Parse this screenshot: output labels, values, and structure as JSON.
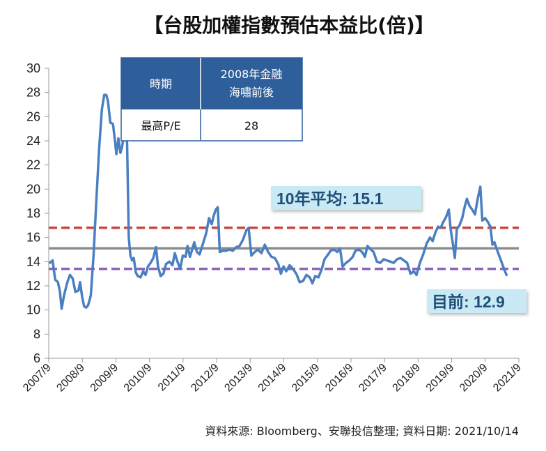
{
  "chart_data": {
    "type": "line",
    "title": "【台股加權指數預估本益比(倍)】",
    "ylim": [
      6,
      30
    ],
    "yticks": [
      6,
      8,
      10,
      12,
      14,
      16,
      18,
      20,
      22,
      24,
      26,
      28,
      30
    ],
    "xticks": [
      "2007/9",
      "2008/9",
      "2009/9",
      "2010/9",
      "2011/9",
      "2012/9",
      "2013/9",
      "2014/9",
      "2015/9",
      "2016/9",
      "2017/9",
      "2018/9",
      "2019/9",
      "2020/9",
      "2021/9"
    ],
    "grid": false,
    "series": [
      {
        "color": "#4a7fc1",
        "points": [
          [
            2007.7,
            13.9
          ],
          [
            2007.78,
            14.1
          ],
          [
            2007.86,
            12.5
          ],
          [
            2007.94,
            12.3
          ],
          [
            2008.0,
            11.5
          ],
          [
            2008.05,
            10.1
          ],
          [
            2008.12,
            11.2
          ],
          [
            2008.22,
            12.3
          ],
          [
            2008.3,
            12.9
          ],
          [
            2008.38,
            12.6
          ],
          [
            2008.46,
            11.5
          ],
          [
            2008.55,
            11.6
          ],
          [
            2008.6,
            12.3
          ],
          [
            2008.66,
            11.1
          ],
          [
            2008.72,
            10.3
          ],
          [
            2008.78,
            10.2
          ],
          [
            2008.84,
            10.4
          ],
          [
            2008.92,
            11.2
          ],
          [
            2009.0,
            14.5
          ],
          [
            2009.08,
            18.8
          ],
          [
            2009.17,
            23.5
          ],
          [
            2009.25,
            26.6
          ],
          [
            2009.32,
            27.8
          ],
          [
            2009.38,
            27.8
          ],
          [
            2009.43,
            27.3
          ],
          [
            2009.5,
            25.5
          ],
          [
            2009.58,
            25.4
          ],
          [
            2009.64,
            24.0
          ],
          [
            2009.68,
            22.9
          ],
          [
            2009.74,
            24.2
          ],
          [
            2009.8,
            23.0
          ],
          [
            2009.85,
            23.5
          ],
          [
            2009.9,
            24.4
          ],
          [
            2009.95,
            24.7
          ],
          [
            2010.0,
            23.8
          ],
          [
            2010.05,
            16.0
          ],
          [
            2010.1,
            14.5
          ],
          [
            2010.15,
            14.1
          ],
          [
            2010.2,
            14.3
          ],
          [
            2010.26,
            13.1
          ],
          [
            2010.32,
            12.8
          ],
          [
            2010.4,
            12.7
          ],
          [
            2010.48,
            13.2
          ],
          [
            2010.55,
            12.9
          ],
          [
            2010.62,
            13.6
          ],
          [
            2010.7,
            13.9
          ],
          [
            2010.78,
            14.3
          ],
          [
            2010.86,
            15.2
          ],
          [
            2010.92,
            13.6
          ],
          [
            2011.0,
            12.8
          ],
          [
            2011.08,
            13.0
          ],
          [
            2011.16,
            13.8
          ],
          [
            2011.26,
            14.0
          ],
          [
            2011.35,
            13.7
          ],
          [
            2011.42,
            14.7
          ],
          [
            2011.5,
            14.0
          ],
          [
            2011.58,
            13.4
          ],
          [
            2011.66,
            14.5
          ],
          [
            2011.74,
            14.4
          ],
          [
            2011.8,
            15.3
          ],
          [
            2011.87,
            14.4
          ],
          [
            2011.94,
            15.0
          ],
          [
            2012.0,
            15.6
          ],
          [
            2012.08,
            14.8
          ],
          [
            2012.16,
            14.6
          ],
          [
            2012.26,
            15.5
          ],
          [
            2012.36,
            16.4
          ],
          [
            2012.44,
            17.6
          ],
          [
            2012.52,
            17.1
          ],
          [
            2012.58,
            17.8
          ],
          [
            2012.64,
            18.3
          ],
          [
            2012.7,
            18.5
          ],
          [
            2012.76,
            14.8
          ],
          [
            2012.85,
            14.9
          ],
          [
            2012.95,
            14.9
          ],
          [
            2013.05,
            15.0
          ],
          [
            2013.15,
            14.9
          ],
          [
            2013.25,
            15.2
          ],
          [
            2013.35,
            15.3
          ],
          [
            2013.45,
            15.8
          ],
          [
            2013.55,
            16.6
          ],
          [
            2013.62,
            16.8
          ],
          [
            2013.7,
            14.5
          ],
          [
            2013.8,
            14.8
          ],
          [
            2013.9,
            15.0
          ],
          [
            2014.0,
            14.7
          ],
          [
            2014.1,
            15.4
          ],
          [
            2014.2,
            14.8
          ],
          [
            2014.3,
            14.4
          ],
          [
            2014.4,
            14.3
          ],
          [
            2014.5,
            13.8
          ],
          [
            2014.58,
            13.0
          ],
          [
            2014.66,
            13.6
          ],
          [
            2014.74,
            13.2
          ],
          [
            2014.84,
            13.7
          ],
          [
            2014.94,
            13.4
          ],
          [
            2015.04,
            13.0
          ],
          [
            2015.14,
            12.3
          ],
          [
            2015.24,
            12.4
          ],
          [
            2015.34,
            12.9
          ],
          [
            2015.44,
            12.7
          ],
          [
            2015.52,
            12.2
          ],
          [
            2015.6,
            12.8
          ],
          [
            2015.7,
            12.7
          ],
          [
            2015.8,
            13.4
          ],
          [
            2015.88,
            14.2
          ],
          [
            2015.96,
            14.5
          ],
          [
            2016.06,
            14.9
          ],
          [
            2016.16,
            15.0
          ],
          [
            2016.26,
            14.8
          ],
          [
            2016.34,
            15.1
          ],
          [
            2016.42,
            13.6
          ],
          [
            2016.52,
            13.9
          ],
          [
            2016.62,
            14.1
          ],
          [
            2016.72,
            14.4
          ],
          [
            2016.8,
            14.9
          ],
          [
            2016.9,
            15.0
          ],
          [
            2017.0,
            14.8
          ],
          [
            2017.08,
            14.4
          ],
          [
            2017.16,
            15.3
          ],
          [
            2017.26,
            15.0
          ],
          [
            2017.34,
            14.8
          ],
          [
            2017.44,
            14.0
          ],
          [
            2017.54,
            13.9
          ],
          [
            2017.64,
            14.2
          ],
          [
            2017.74,
            14.1
          ],
          [
            2017.84,
            14.0
          ],
          [
            2017.94,
            13.9
          ],
          [
            2018.04,
            14.2
          ],
          [
            2018.14,
            14.3
          ],
          [
            2018.24,
            14.1
          ],
          [
            2018.34,
            13.9
          ],
          [
            2018.44,
            13.0
          ],
          [
            2018.54,
            13.2
          ],
          [
            2018.62,
            12.9
          ],
          [
            2018.72,
            13.9
          ],
          [
            2018.82,
            14.6
          ],
          [
            2018.92,
            15.5
          ],
          [
            2019.02,
            16.0
          ],
          [
            2019.1,
            15.7
          ],
          [
            2019.18,
            16.4
          ],
          [
            2019.26,
            16.9
          ],
          [
            2019.34,
            16.8
          ],
          [
            2019.42,
            17.3
          ],
          [
            2019.5,
            17.7
          ],
          [
            2019.58,
            18.3
          ],
          [
            2019.64,
            16.6
          ],
          [
            2019.7,
            15.5
          ],
          [
            2019.76,
            14.3
          ],
          [
            2019.82,
            16.7
          ],
          [
            2019.9,
            17.0
          ],
          [
            2019.98,
            17.6
          ],
          [
            2020.06,
            18.6
          ],
          [
            2020.12,
            19.2
          ],
          [
            2020.2,
            18.6
          ],
          [
            2020.28,
            18.3
          ],
          [
            2020.36,
            17.9
          ],
          [
            2020.44,
            19.2
          ],
          [
            2020.52,
            20.2
          ],
          [
            2020.58,
            17.4
          ],
          [
            2020.66,
            17.6
          ],
          [
            2020.74,
            17.3
          ],
          [
            2020.82,
            16.9
          ],
          [
            2020.88,
            15.4
          ],
          [
            2020.94,
            15.6
          ],
          [
            2021.0,
            15.1
          ],
          [
            2021.08,
            14.5
          ],
          [
            2021.16,
            13.9
          ],
          [
            2021.24,
            13.3
          ],
          [
            2021.3,
            12.9
          ]
        ]
      }
    ],
    "reference_lines": [
      {
        "value": 16.8,
        "color": "#c8453f",
        "style": "dashed"
      },
      {
        "value": 15.1,
        "color": "#8c8c8c",
        "style": "solid"
      },
      {
        "value": 13.4,
        "color": "#8a62b8",
        "style": "dashed"
      }
    ],
    "annotations": {
      "average_label": "10年平均: 15.1",
      "current_label": "目前: 12.9"
    },
    "table": {
      "header_col1": "時期",
      "header_col2_line1": "2008年金融",
      "header_col2_line2": "海嘯前後",
      "row_label": "最高P/E",
      "row_value": "28"
    },
    "source": "資料來源: Bloomberg、安聯投信整理; 資料日期:  2021/10/14"
  }
}
